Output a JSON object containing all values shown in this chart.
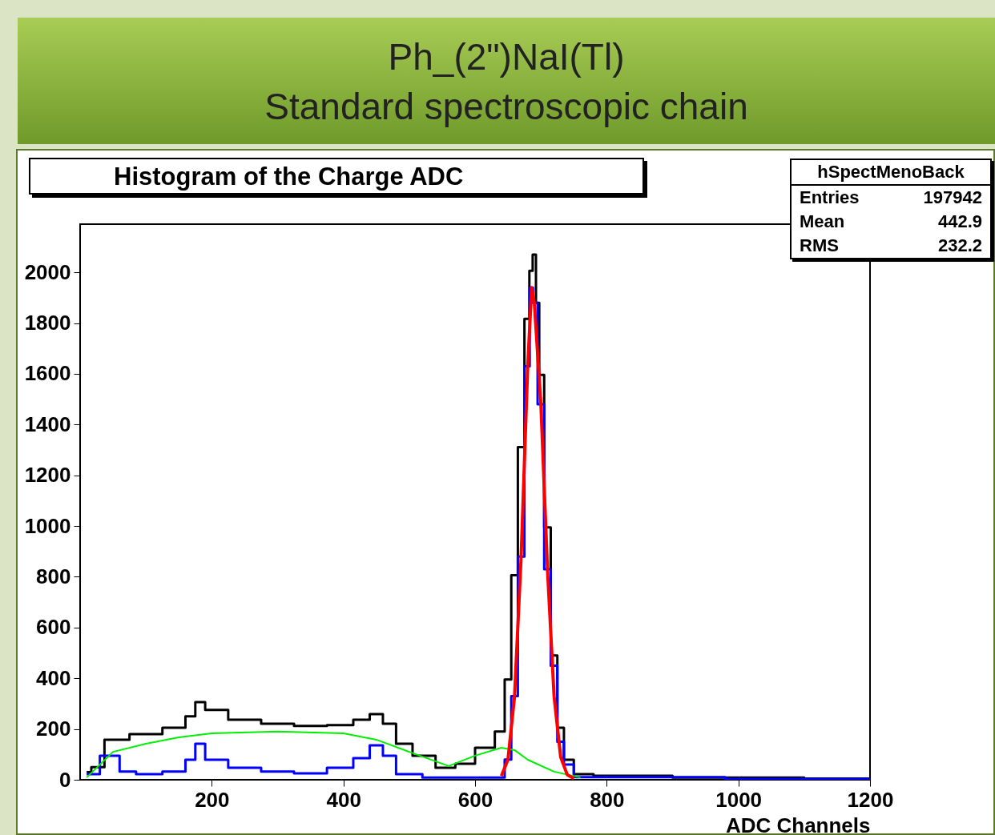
{
  "chart_data": {
    "type": "line",
    "title": "Histogram of the Charge ADC",
    "xlabel": "ADC Channels",
    "annotations": [
      "Ph_(2\")NaI(Tl)",
      "Standard spectroscopic chain",
      "hSpectMenoBack",
      "Entries",
      "197942",
      "Mean",
      "442.9",
      "RMS",
      "232.2"
    ],
    "xlim": [
      0,
      1200
    ],
    "ylim": [
      0,
      2190
    ],
    "xticks": [
      200,
      400,
      600,
      800,
      1000,
      1200
    ],
    "yticks": [
      0,
      200,
      400,
      600,
      800,
      1000,
      1200,
      1400,
      1600,
      1800,
      2000
    ],
    "grid": false,
    "series": [
      {
        "type": "step",
        "color": "#000000",
        "x": [
          10,
          24,
          50,
          100,
          150,
          170,
          180,
          200,
          250,
          300,
          350,
          400,
          430,
          450,
          470,
          490,
          520,
          560,
          580,
          620,
          640,
          650,
          660,
          670,
          680,
          685,
          690,
          695,
          700,
          710,
          720,
          730,
          740,
          760,
          800,
          1000,
          1200
        ],
        "values": [
          30,
          50,
          158,
          180,
          205,
          250,
          306,
          275,
          237,
          221,
          212,
          215,
          237,
          259,
          221,
          142,
          95,
          47,
          63,
          126,
          190,
          395,
          806,
          1311,
          1817,
          2006,
          2070,
          1880,
          1596,
          995,
          490,
          205,
          79,
          22,
          16,
          9,
          5
        ]
      },
      {
        "type": "step",
        "color": "#0000ff",
        "x": [
          10,
          50,
          70,
          100,
          150,
          170,
          180,
          200,
          250,
          300,
          350,
          400,
          430,
          450,
          470,
          490,
          550,
          640,
          650,
          660,
          670,
          680,
          686,
          690,
          700,
          710,
          720,
          730,
          740,
          760,
          1200
        ],
        "values": [
          22,
          95,
          32,
          22,
          32,
          79,
          142,
          79,
          47,
          32,
          25,
          47,
          85,
          136,
          95,
          22,
          9,
          9,
          80,
          330,
          880,
          1630,
          1940,
          1880,
          1480,
          830,
          450,
          150,
          60,
          10,
          3
        ]
      },
      {
        "type": "line",
        "color": "#00ee00",
        "x": [
          10,
          50,
          100,
          150,
          200,
          300,
          400,
          450,
          500,
          560,
          600,
          640,
          660,
          680,
          720,
          760
        ],
        "values": [
          9,
          110,
          142,
          167,
          183,
          190,
          183,
          158,
          110,
          54,
          95,
          126,
          117,
          79,
          32,
          9
        ]
      },
      {
        "type": "line",
        "color": "#ff0000",
        "x": [
          640,
          650,
          660,
          670,
          680,
          686,
          690,
          700,
          710,
          720,
          730,
          740,
          750
        ],
        "values": [
          15,
          80,
          330,
          880,
          1630,
          1940,
          1880,
          1480,
          830,
          330,
          90,
          20,
          5
        ]
      }
    ]
  }
}
